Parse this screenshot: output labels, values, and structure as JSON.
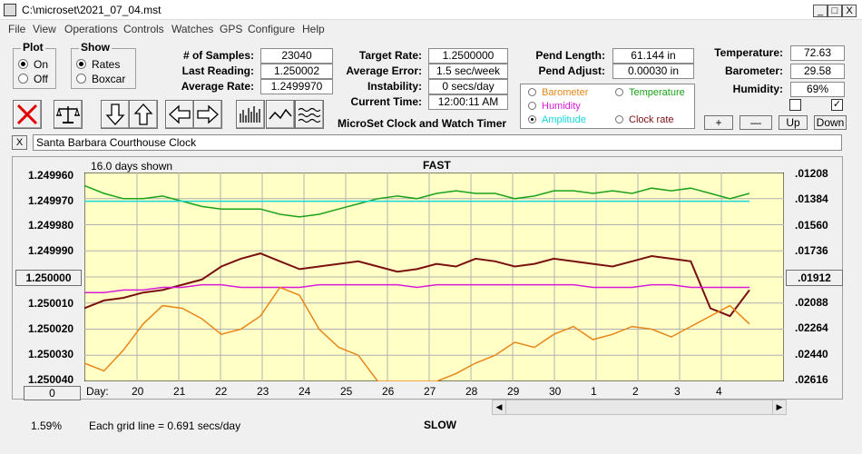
{
  "window": {
    "title": "C:\\microset\\2021_07_04.mst",
    "min": "_",
    "max": "□",
    "close": "X"
  },
  "menu": [
    "File",
    "View",
    "Operations",
    "Controls",
    "Watches",
    "GPS",
    "Configure",
    "Help"
  ],
  "plot": {
    "title": "Plot",
    "on": "On",
    "off": "Off",
    "selected": "On"
  },
  "show": {
    "title": "Show",
    "rates": "Rates",
    "boxcar": "Boxcar",
    "selected": "Rates"
  },
  "stats": {
    "samples_label": "# of Samples:",
    "samples": "23040",
    "last_label": "Last Reading:",
    "last": "1.250002",
    "avg_label": "Average Rate:",
    "avg": "1.2499970"
  },
  "target": {
    "rate_label": "Target Rate:",
    "rate": "1.2500000",
    "error_label": "Average Error:",
    "error": "1.5 sec/week",
    "instab_label": "Instability:",
    "instab": "0 secs/day",
    "time_label": "Current Time:",
    "time": "12:00:11 AM"
  },
  "app_name": "MicroSet Clock and Watch Timer",
  "pend": {
    "length_label": "Pend Length:",
    "length": "61.144 in",
    "adjust_label": "Pend Adjust:",
    "adjust": "0.00030 in"
  },
  "env": {
    "temp_label": "Temperature:",
    "temp": "72.63",
    "baro_label": "Barometer:",
    "baro": "29.58",
    "hum_label": "Humidity:",
    "hum": "69%"
  },
  "legend": {
    "barometer": "Barometer",
    "temperature": "Temperature",
    "humidity": "Humidity",
    "amplitude": "Amplitude",
    "clock_rate": "Clock rate",
    "selected": "Amplitude",
    "colors": {
      "barometer": "#e8861a",
      "temperature": "#1aa21a",
      "humidity": "#d81ad8",
      "amplitude": "#18d8d8",
      "clock_rate": "#7a1010"
    }
  },
  "adjust_buttons": {
    "plus": "+",
    "minus": "—",
    "up": "Up",
    "down": "Down"
  },
  "clock_name_close": "X",
  "clock_name": "Santa Barbara Courthouse Clock",
  "chart_header": {
    "days_shown": "16.0 days shown",
    "fast": "FAST",
    "slow": "SLOW",
    "grid_note": "Each grid line = 0.691 secs/day",
    "pct": "1.59%",
    "zero_btn": "0",
    "day_label": "Day:"
  },
  "chart_data": {
    "type": "line",
    "x_ticks": [
      "20",
      "21",
      "22",
      "23",
      "24",
      "25",
      "26",
      "27",
      "28",
      "29",
      "30",
      "1",
      "2",
      "3",
      "4"
    ],
    "y_left_ticks": [
      "1.249960",
      "1.249970",
      "1.249980",
      "1.249990",
      "1.250000",
      "1.250010",
      "1.250020",
      "1.250030",
      "1.250040"
    ],
    "y_left_center": "1.250000",
    "y_right_ticks": [
      ".01208",
      ".01384",
      ".01560",
      ".01736",
      ".01912",
      ".02088",
      ".02264",
      ".02440",
      ".02616"
    ],
    "y_right_center": ".01912",
    "y_left_range": [
      1.24996,
      1.25004
    ],
    "grid": true,
    "series": [
      {
        "name": "Temperature",
        "color": "#1aa21a",
        "values": [
          1.249965,
          1.249968,
          1.24997,
          1.24997,
          1.249969,
          1.249971,
          1.249973,
          1.249974,
          1.249974,
          1.249974,
          1.249976,
          1.249977,
          1.249976,
          1.249974,
          1.249972,
          1.24997,
          1.249969,
          1.24997,
          1.249968,
          1.249967,
          1.249968,
          1.249968,
          1.24997,
          1.249969,
          1.249967,
          1.249967,
          1.249968,
          1.249967,
          1.249968,
          1.249966,
          1.249967,
          1.249966,
          1.249968,
          1.24997,
          1.249968
        ]
      },
      {
        "name": "Amplitude",
        "color": "#18d8d8",
        "values": [
          1.249971,
          1.249971,
          1.249971,
          1.249971,
          1.249971,
          1.249971,
          1.249971,
          1.249971,
          1.249971,
          1.249971,
          1.249971,
          1.249971,
          1.249971,
          1.249971,
          1.249971,
          1.249971,
          1.249971,
          1.249971,
          1.249971,
          1.249971,
          1.249971,
          1.249971,
          1.249971,
          1.249971,
          1.249971,
          1.249971,
          1.249971,
          1.249971,
          1.249971,
          1.249971,
          1.249971,
          1.249971,
          1.249971,
          1.249971,
          1.249971
        ]
      },
      {
        "name": "Clock rate",
        "color": "#7a1010",
        "values": [
          1.250012,
          1.250009,
          1.250008,
          1.250006,
          1.250005,
          1.250003,
          1.250001,
          1.249996,
          1.249993,
          1.249991,
          1.249994,
          1.249997,
          1.249996,
          1.249995,
          1.249994,
          1.249996,
          1.249998,
          1.249997,
          1.249995,
          1.249996,
          1.249993,
          1.249994,
          1.249996,
          1.249995,
          1.249993,
          1.249994,
          1.249995,
          1.249996,
          1.249994,
          1.249992,
          1.249993,
          1.249994,
          1.250012,
          1.250015,
          1.250005
        ]
      },
      {
        "name": "Humidity",
        "color": "#d81ad8",
        "values": [
          1.250006,
          1.250006,
          1.250005,
          1.250005,
          1.250004,
          1.250004,
          1.250003,
          1.250003,
          1.250004,
          1.250004,
          1.250004,
          1.250004,
          1.250003,
          1.250003,
          1.250003,
          1.250003,
          1.250003,
          1.250004,
          1.250003,
          1.250003,
          1.250003,
          1.250003,
          1.250003,
          1.250003,
          1.250003,
          1.250003,
          1.250004,
          1.250004,
          1.250004,
          1.250003,
          1.250003,
          1.250004,
          1.250004,
          1.250004,
          1.250004
        ]
      },
      {
        "name": "Barometer",
        "color": "#e8861a",
        "values": [
          1.250033,
          1.250036,
          1.250028,
          1.250018,
          1.250011,
          1.250012,
          1.250016,
          1.250022,
          1.25002,
          1.250015,
          1.250004,
          1.250007,
          1.25002,
          1.250027,
          1.25003,
          1.25004,
          1.25004,
          1.25004,
          1.25004,
          1.250037,
          1.250033,
          1.25003,
          1.250025,
          1.250027,
          1.250022,
          1.250019,
          1.250024,
          1.250022,
          1.250019,
          1.25002,
          1.250023,
          1.250019,
          1.250015,
          1.250011,
          1.250018
        ]
      }
    ]
  }
}
